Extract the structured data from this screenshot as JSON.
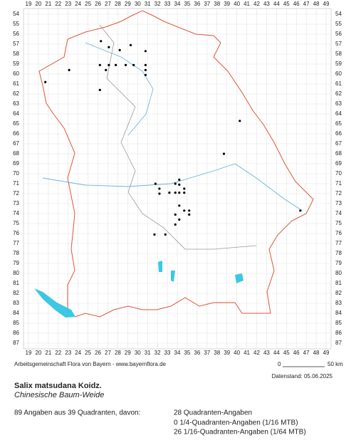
{
  "grid": {
    "columns": [
      19,
      20,
      21,
      22,
      23,
      24,
      25,
      26,
      27,
      28,
      29,
      30,
      31,
      32,
      33,
      34,
      35,
      36,
      37,
      38,
      39,
      40,
      41,
      42,
      43,
      44,
      45,
      46,
      47,
      48,
      49
    ],
    "rows": [
      54,
      55,
      56,
      57,
      58,
      59,
      60,
      61,
      62,
      63,
      64,
      65,
      66,
      67,
      68,
      69,
      70,
      71,
      72,
      73,
      74,
      75,
      76,
      77,
      78,
      79,
      80,
      81,
      82,
      83,
      84,
      85,
      86,
      87
    ]
  },
  "records": [
    {
      "x": 26.3,
      "y": 56.7
    },
    {
      "x": 27.1,
      "y": 57.3
    },
    {
      "x": 29.3,
      "y": 57.1
    },
    {
      "x": 28.2,
      "y": 57.6
    },
    {
      "x": 30.8,
      "y": 57.7
    },
    {
      "x": 26.2,
      "y": 59.1
    },
    {
      "x": 27.1,
      "y": 59.1
    },
    {
      "x": 27.8,
      "y": 59.1
    },
    {
      "x": 28.8,
      "y": 59.1
    },
    {
      "x": 29.6,
      "y": 59.1
    },
    {
      "x": 30.8,
      "y": 59.1
    },
    {
      "x": 30.8,
      "y": 59.6
    },
    {
      "x": 30.8,
      "y": 60.1
    },
    {
      "x": 26.8,
      "y": 59.6
    },
    {
      "x": 26.2,
      "y": 61.6
    },
    {
      "x": 23.1,
      "y": 59.6
    },
    {
      "x": 20.7,
      "y": 60.8
    },
    {
      "x": 40.3,
      "y": 64.7
    },
    {
      "x": 38.7,
      "y": 68.0
    },
    {
      "x": 31.8,
      "y": 71.0
    },
    {
      "x": 33.8,
      "y": 71.0
    },
    {
      "x": 34.2,
      "y": 70.6
    },
    {
      "x": 34.2,
      "y": 71.1
    },
    {
      "x": 32.2,
      "y": 71.5
    },
    {
      "x": 33.2,
      "y": 71.9
    },
    {
      "x": 32.2,
      "y": 72.0
    },
    {
      "x": 34.2,
      "y": 71.9
    },
    {
      "x": 33.8,
      "y": 71.9
    },
    {
      "x": 34.7,
      "y": 71.5
    },
    {
      "x": 34.7,
      "y": 71.9
    },
    {
      "x": 34.2,
      "y": 73.2
    },
    {
      "x": 34.7,
      "y": 73.7
    },
    {
      "x": 35.2,
      "y": 73.7
    },
    {
      "x": 35.2,
      "y": 74.1
    },
    {
      "x": 33.8,
      "y": 74.1
    },
    {
      "x": 34.2,
      "y": 74.6
    },
    {
      "x": 33.8,
      "y": 75.1
    },
    {
      "x": 31.7,
      "y": 76.1
    },
    {
      "x": 32.8,
      "y": 76.1
    },
    {
      "x": 46.4,
      "y": 73.7
    }
  ],
  "footer": {
    "credit": "Arbeitsgemeinschaft Flora von Bayern - www.bayernflora.de",
    "scale_start": "0",
    "scale_end": "50 km",
    "date": "Datenstand: 05.06.2025"
  },
  "species": {
    "name": "Salix matsudana Koidz.",
    "common_name": "Chinesische Baum-Weide"
  },
  "stats": {
    "summary": "89 Angaben aus 39 Quadranten, davon:",
    "lines": [
      "28 Quadranten-Angaben",
      "0 1/4-Quadranten-Angaben (1/16 MTB)",
      "26 1/16-Quadranten-Angaben (1/64 MTB)"
    ]
  }
}
